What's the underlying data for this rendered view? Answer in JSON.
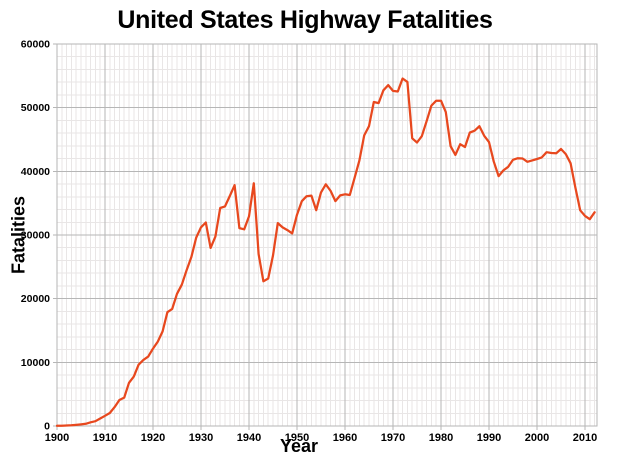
{
  "chart_data": {
    "type": "line",
    "title": "United States Highway Fatalities",
    "xlabel": "Year",
    "ylabel": "Fatalities",
    "xlim": [
      1900,
      2012.5
    ],
    "ylim": [
      0,
      60000
    ],
    "x_major_ticks": [
      1900,
      1910,
      1920,
      1930,
      1940,
      1950,
      1960,
      1970,
      1980,
      1990,
      2000,
      2010
    ],
    "y_major_ticks": [
      0,
      10000,
      20000,
      30000,
      40000,
      50000,
      60000
    ],
    "x_minor_step": 1,
    "y_minor_step": 2000,
    "grid": "major+minor",
    "legend": "none",
    "series": [
      {
        "name": "Highway fatalities",
        "x": [
          1900,
          1901,
          1902,
          1903,
          1904,
          1905,
          1906,
          1907,
          1908,
          1909,
          1910,
          1911,
          1912,
          1913,
          1914,
          1915,
          1916,
          1917,
          1918,
          1919,
          1920,
          1921,
          1922,
          1923,
          1924,
          1925,
          1926,
          1927,
          1928,
          1929,
          1930,
          1931,
          1932,
          1933,
          1934,
          1935,
          1936,
          1937,
          1938,
          1939,
          1940,
          1941,
          1942,
          1943,
          1944,
          1945,
          1946,
          1947,
          1948,
          1949,
          1950,
          1951,
          1952,
          1953,
          1954,
          1955,
          1956,
          1957,
          1958,
          1959,
          1960,
          1961,
          1962,
          1963,
          1964,
          1965,
          1966,
          1967,
          1968,
          1969,
          1970,
          1971,
          1972,
          1973,
          1974,
          1975,
          1976,
          1977,
          1978,
          1979,
          1980,
          1981,
          1982,
          1983,
          1984,
          1985,
          1986,
          1987,
          1988,
          1989,
          1990,
          1991,
          1992,
          1993,
          1994,
          1995,
          1996,
          1997,
          1998,
          1999,
          2000,
          2001,
          2002,
          2003,
          2004,
          2005,
          2006,
          2007,
          2008,
          2009,
          2010,
          2011,
          2012
        ],
        "values": [
          36,
          54,
          79,
          117,
          172,
          252,
          338,
          581,
          751,
          1174,
          1599,
          2043,
          2968,
          4079,
          4468,
          6779,
          7766,
          9630,
          10390,
          10896,
          12155,
          13253,
          14859,
          17870,
          18400,
          20771,
          22194,
          24470,
          26557,
          29592,
          31204,
          31963,
          27979,
          29746,
          34240,
          34494,
          36126,
          37819,
          31083,
          30895,
          32914,
          38142,
          27007,
          22727,
          23165,
          26785,
          31874,
          31193,
          30775,
          30246,
          33186,
          35309,
          36088,
          36190,
          33890,
          36688,
          37965,
          36932,
          35331,
          36223,
          36399,
          36285,
          38980,
          41723,
          45645,
          47089,
          50894,
          50724,
          52725,
          53543,
          52627,
          52542,
          54589,
          54052,
          45196,
          44525,
          45523,
          47878,
          50331,
          51093,
          51091,
          49301,
          43945,
          42589,
          44257,
          43825,
          46087,
          46390,
          47087,
          45582,
          44599,
          41508,
          39250,
          40150,
          40716,
          41817,
          42065,
          42013,
          41501,
          41717,
          41945,
          42196,
          43005,
          42884,
          42836,
          43510,
          42708,
          41259,
          37423,
          33883,
          32999,
          32479,
          33561
        ]
      }
    ]
  },
  "colors": {
    "background": "#ffffff",
    "grid_major": "#b6b6b6",
    "grid_minor": "#e9e6e6",
    "line": "#e8481e",
    "text": "#000000"
  }
}
